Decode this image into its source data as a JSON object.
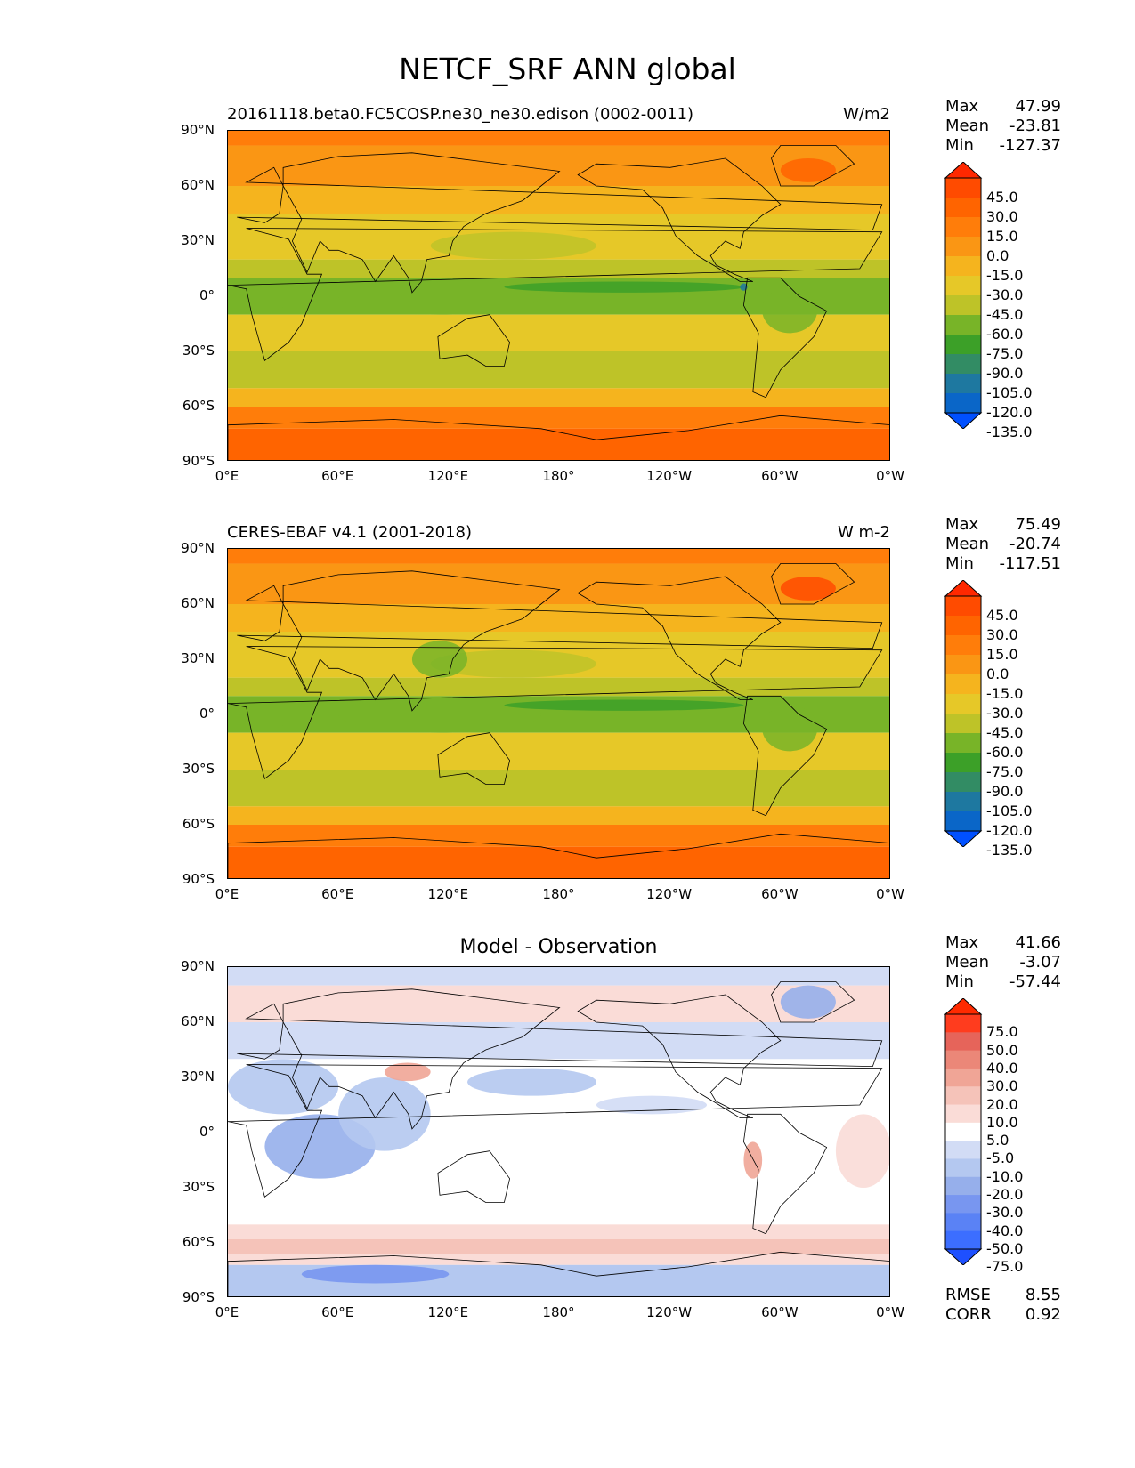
{
  "title": "NETCF_SRF ANN global",
  "x_ticks": [
    "0°E",
    "60°E",
    "120°E",
    "180°",
    "120°W",
    "60°W",
    "0°W"
  ],
  "y_ticks": [
    "90°N",
    "60°N",
    "30°N",
    "0°",
    "30°S",
    "60°S",
    "90°S"
  ],
  "panels": [
    {
      "subtitle_left": "20161118.beta0.FC5COSP.ne30_ne30.edison (0002-0011)",
      "subtitle_right": "W/m2",
      "stats": {
        "max_label": "Max",
        "max": "47.99",
        "mean_label": "Mean",
        "mean": "-23.81",
        "min_label": "Min",
        "min": "-127.37"
      },
      "colorbar_labels": [
        "45.0",
        "30.0",
        "15.0",
        "0.0",
        "-15.0",
        "-30.0",
        "-45.0",
        "-60.0",
        "-75.0",
        "-90.0",
        "-105.0",
        "-120.0",
        "-135.0"
      ]
    },
    {
      "subtitle_left": "CERES-EBAF v4.1 (2001-2018)",
      "subtitle_right": "W m-2",
      "stats": {
        "max_label": "Max",
        "max": "75.49",
        "mean_label": "Mean",
        "mean": "-20.74",
        "min_label": "Min",
        "min": "-117.51"
      },
      "colorbar_labels": [
        "45.0",
        "30.0",
        "15.0",
        "0.0",
        "-15.0",
        "-30.0",
        "-45.0",
        "-60.0",
        "-75.0",
        "-90.0",
        "-105.0",
        "-120.0",
        "-135.0"
      ]
    },
    {
      "subtitle_center": "Model - Observation",
      "stats": {
        "max_label": "Max",
        "max": "41.66",
        "mean_label": "Mean",
        "mean": "-3.07",
        "min_label": "Min",
        "min": "-57.44"
      },
      "colorbar_labels": [
        "75.0",
        "50.0",
        "40.0",
        "30.0",
        "20.0",
        "10.0",
        "5.0",
        "-5.0",
        "-10.0",
        "-20.0",
        "-30.0",
        "-40.0",
        "-50.0",
        "-75.0"
      ],
      "footer": {
        "rmse_label": "RMSE",
        "rmse": "8.55",
        "corr_label": "CORR",
        "corr": "0.92"
      }
    }
  ],
  "colors": {
    "abs_scale": [
      "#0050ff",
      "#0a66c8",
      "#1e78a0",
      "#328c64",
      "#3ca028",
      "#78b428",
      "#bec328",
      "#e6c828",
      "#f5b41e",
      "#fa9614",
      "#ff7d0a",
      "#ff6400",
      "#ff4b00",
      "#ff2800"
    ],
    "diff_scale": [
      "#1e50ff",
      "#3c6eff",
      "#5a82f5",
      "#7896f0",
      "#96afeb",
      "#b4c8f0",
      "#d2dcf5",
      "#ffffff",
      "#fadcd7",
      "#f5c3b9",
      "#f0a596",
      "#eb8778",
      "#e6645a",
      "#ff3c1e",
      "#ff2a00"
    ]
  }
}
